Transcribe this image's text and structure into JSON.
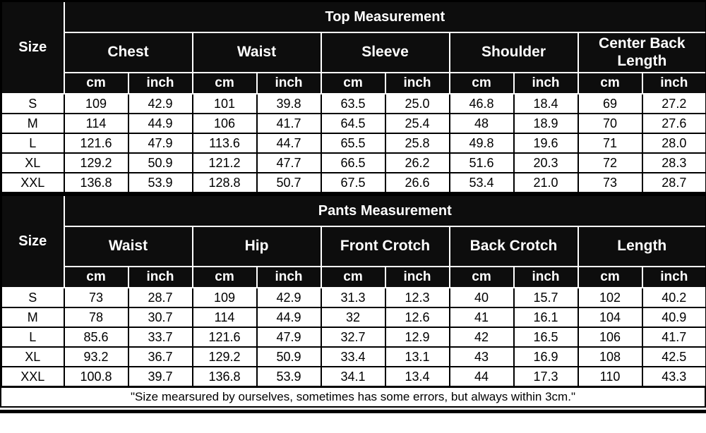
{
  "colors": {
    "header_bg": "#0d0d0d",
    "header_text": "#ffffff",
    "cell_bg": "#ffffff",
    "cell_text": "#000000",
    "grid_dark": "#000000",
    "grid_light": "#ffffff"
  },
  "tables": [
    {
      "title": "Top Measurement",
      "size_label": "Size",
      "groups": [
        "Chest",
        "Waist",
        "Sleeve",
        "Shoulder",
        "Center Back Length"
      ],
      "unit_labels": [
        "cm",
        "inch"
      ],
      "rows": [
        {
          "size": "S",
          "values": [
            "109",
            "42.9",
            "101",
            "39.8",
            "63.5",
            "25.0",
            "46.8",
            "18.4",
            "69",
            "27.2"
          ]
        },
        {
          "size": "M",
          "values": [
            "114",
            "44.9",
            "106",
            "41.7",
            "64.5",
            "25.4",
            "48",
            "18.9",
            "70",
            "27.6"
          ]
        },
        {
          "size": "L",
          "values": [
            "121.6",
            "47.9",
            "113.6",
            "44.7",
            "65.5",
            "25.8",
            "49.8",
            "19.6",
            "71",
            "28.0"
          ]
        },
        {
          "size": "XL",
          "values": [
            "129.2",
            "50.9",
            "121.2",
            "47.7",
            "66.5",
            "26.2",
            "51.6",
            "20.3",
            "72",
            "28.3"
          ]
        },
        {
          "size": "XXL",
          "values": [
            "136.8",
            "53.9",
            "128.8",
            "50.7",
            "67.5",
            "26.6",
            "53.4",
            "21.0",
            "73",
            "28.7"
          ]
        }
      ]
    },
    {
      "title": "Pants Measurement",
      "size_label": "Size",
      "groups": [
        "Waist",
        "Hip",
        "Front Crotch",
        "Back Crotch",
        "Length"
      ],
      "unit_labels": [
        "cm",
        "inch"
      ],
      "rows": [
        {
          "size": "S",
          "values": [
            "73",
            "28.7",
            "109",
            "42.9",
            "31.3",
            "12.3",
            "40",
            "15.7",
            "102",
            "40.2"
          ]
        },
        {
          "size": "M",
          "values": [
            "78",
            "30.7",
            "114",
            "44.9",
            "32",
            "12.6",
            "41",
            "16.1",
            "104",
            "40.9"
          ]
        },
        {
          "size": "L",
          "values": [
            "85.6",
            "33.7",
            "121.6",
            "47.9",
            "32.7",
            "12.9",
            "42",
            "16.5",
            "106",
            "41.7"
          ]
        },
        {
          "size": "XL",
          "values": [
            "93.2",
            "36.7",
            "129.2",
            "50.9",
            "33.4",
            "13.1",
            "43",
            "16.9",
            "108",
            "42.5"
          ]
        },
        {
          "size": "XXL",
          "values": [
            "100.8",
            "39.7",
            "136.8",
            "53.9",
            "34.1",
            "13.4",
            "44",
            "17.3",
            "110",
            "43.3"
          ]
        }
      ]
    }
  ],
  "footer": {
    "note": "\"Size mearsured by ourselves, sometimes has some errors, but always within 3cm.\""
  }
}
